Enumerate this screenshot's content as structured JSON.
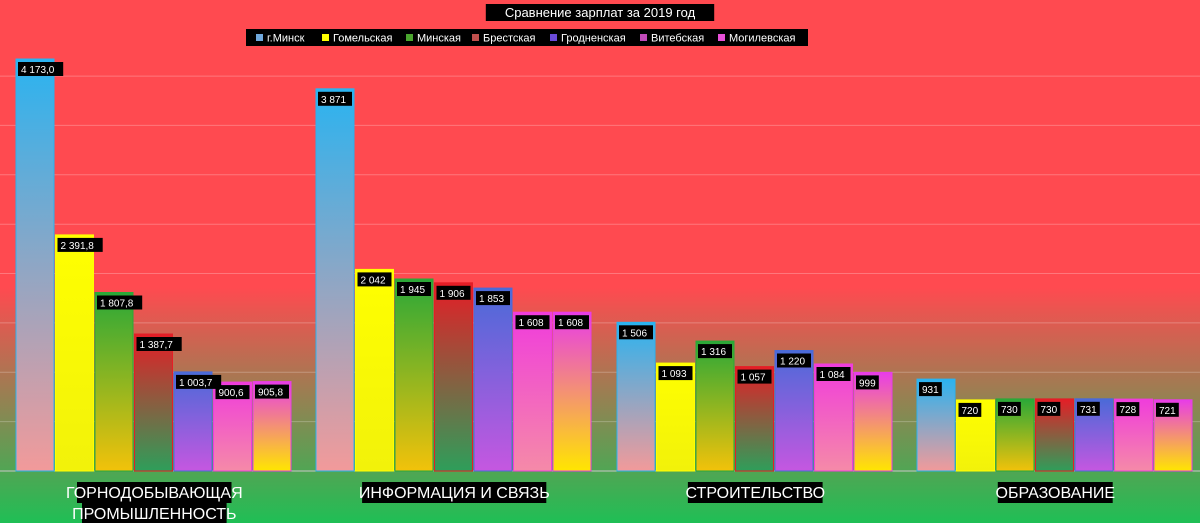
{
  "chart_data": {
    "type": "bar",
    "title": "Сравнение зарплат за 2019 год",
    "categories": [
      "ГОРНОДОБЫВАЮЩАЯ ПРОМЫШЛЕННОСТЬ",
      "ИНФОРМАЦИЯ И СВЯЗЬ",
      "СТРОИТЕЛЬСТВО",
      "ОБРАЗОВАНИЕ"
    ],
    "category_lines": [
      [
        "ГОРНОДОБЫВАЮЩАЯ",
        "ПРОМЫШЛЕННОСТЬ"
      ],
      [
        "ИНФОРМАЦИЯ И СВЯЗЬ"
      ],
      [
        "СТРОИТЕЛЬСТВО"
      ],
      [
        "ОБРАЗОВАНИЕ"
      ]
    ],
    "series": [
      {
        "name": "г.Минск",
        "values": [
          4173.0,
          3871,
          1506,
          931
        ],
        "labels": [
          "4 173,0",
          "3 871",
          "1 506",
          "931"
        ],
        "color": "#2ab3f0",
        "legend_color": "#6fa8dc",
        "bottom_color": "#f29a9a"
      },
      {
        "name": "Гомельская",
        "values": [
          2391.8,
          2042,
          1093,
          720
        ],
        "labels": [
          "2 391,8",
          "2 042",
          "1 093",
          "720"
        ],
        "color": "#ffff00",
        "legend_color": "#ffff00",
        "bottom_color": "#f2f20a"
      },
      {
        "name": "Минская",
        "values": [
          1807.8,
          1945,
          1316,
          730
        ],
        "labels": [
          "1 807,8",
          "1 945",
          "1 316",
          "730"
        ],
        "color": "#2aa838",
        "legend_color": "#4aa52e",
        "bottom_color": "#f2c20a"
      },
      {
        "name": "Брестская",
        "values": [
          1387.7,
          1906,
          1057,
          730
        ],
        "labels": [
          "1 387,7",
          "1 906",
          "1 057",
          "730"
        ],
        "color": "#e51d26",
        "legend_color": "#c0504d",
        "bottom_color": "#2e9e5a"
      },
      {
        "name": "Гродненская",
        "values": [
          1003.7,
          1853,
          1220,
          731
        ],
        "labels": [
          "1 003,7",
          "1 853",
          "1 220",
          "731"
        ],
        "color": "#4a6ad8",
        "legend_color": "#6a4ad8",
        "bottom_color": "#c557e0"
      },
      {
        "name": "Витебская",
        "values": [
          900.6,
          1608,
          1084,
          728
        ],
        "labels": [
          "900,6",
          "1 608",
          "1 084",
          "728"
        ],
        "color": "#f03cdc",
        "legend_color": "#c04ab8",
        "bottom_color": "#f58aa8"
      },
      {
        "name": "Могилевская",
        "values": [
          905.8,
          1608,
          999,
          721
        ],
        "labels": [
          "905,8",
          "1 608",
          "999",
          "721"
        ],
        "color": "#e83ce8",
        "legend_color": "#e850d8",
        "bottom_color": "#ffe600"
      }
    ],
    "ylim": [
      0,
      4200
    ],
    "grid": true,
    "legend_position": "top",
    "background_top_color": "#ff4a50",
    "background_bottom_color": "#1fbf55",
    "label_box_color": "#000000",
    "label_text_color": "#ffffff"
  }
}
